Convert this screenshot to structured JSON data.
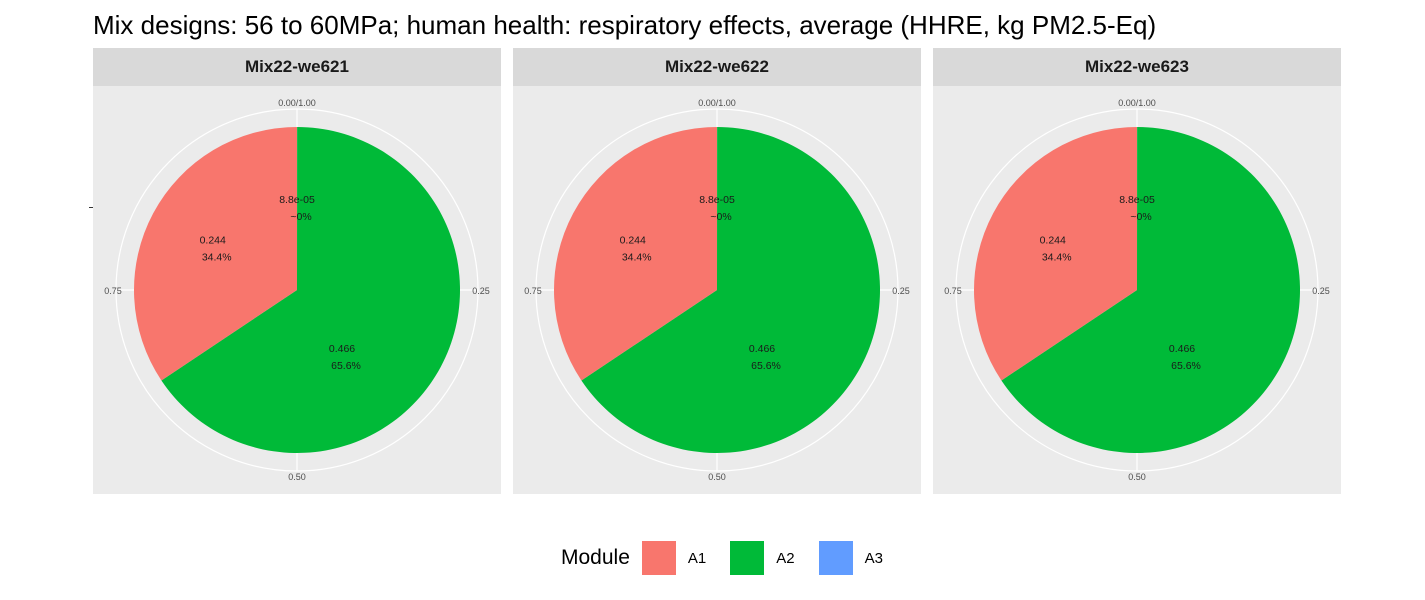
{
  "title": "Mix designs: 56 to 60MPa; human health: respiratory effects, average (HHRE, kg PM2.5-Eq)",
  "legend": {
    "title": "Module",
    "items": [
      {
        "label": "A1",
        "color": "#f8766d"
      },
      {
        "label": "A2",
        "color": "#00ba38"
      },
      {
        "label": "A3",
        "color": "#619cff"
      }
    ]
  },
  "chart_data": [
    {
      "type": "pie",
      "title": "Mix22-we621",
      "angle_ticks": [
        "0.00/1.00",
        "0.25",
        "0.50",
        "0.75"
      ],
      "slices": [
        {
          "module": "A1",
          "value": 0.244,
          "percent": "34.4%",
          "value_label": "0.244"
        },
        {
          "module": "A2",
          "value": 0.466,
          "percent": "65.6%",
          "value_label": "0.466"
        },
        {
          "module": "A3",
          "value": 8.8e-05,
          "percent": "~0%",
          "value_label": "8.8e-05"
        }
      ]
    },
    {
      "type": "pie",
      "title": "Mix22-we622",
      "angle_ticks": [
        "0.00/1.00",
        "0.25",
        "0.50",
        "0.75"
      ],
      "slices": [
        {
          "module": "A1",
          "value": 0.244,
          "percent": "34.4%",
          "value_label": "0.244"
        },
        {
          "module": "A2",
          "value": 0.466,
          "percent": "65.6%",
          "value_label": "0.466"
        },
        {
          "module": "A3",
          "value": 8.8e-05,
          "percent": "~0%",
          "value_label": "8.8e-05"
        }
      ]
    },
    {
      "type": "pie",
      "title": "Mix22-we623",
      "angle_ticks": [
        "0.00/1.00",
        "0.25",
        "0.50",
        "0.75"
      ],
      "slices": [
        {
          "module": "A1",
          "value": 0.244,
          "percent": "34.4%",
          "value_label": "0.244"
        },
        {
          "module": "A2",
          "value": 0.466,
          "percent": "65.6%",
          "value_label": "0.466"
        },
        {
          "module": "A3",
          "value": 8.8e-05,
          "percent": "~0%",
          "value_label": "8.8e-05"
        }
      ]
    }
  ]
}
